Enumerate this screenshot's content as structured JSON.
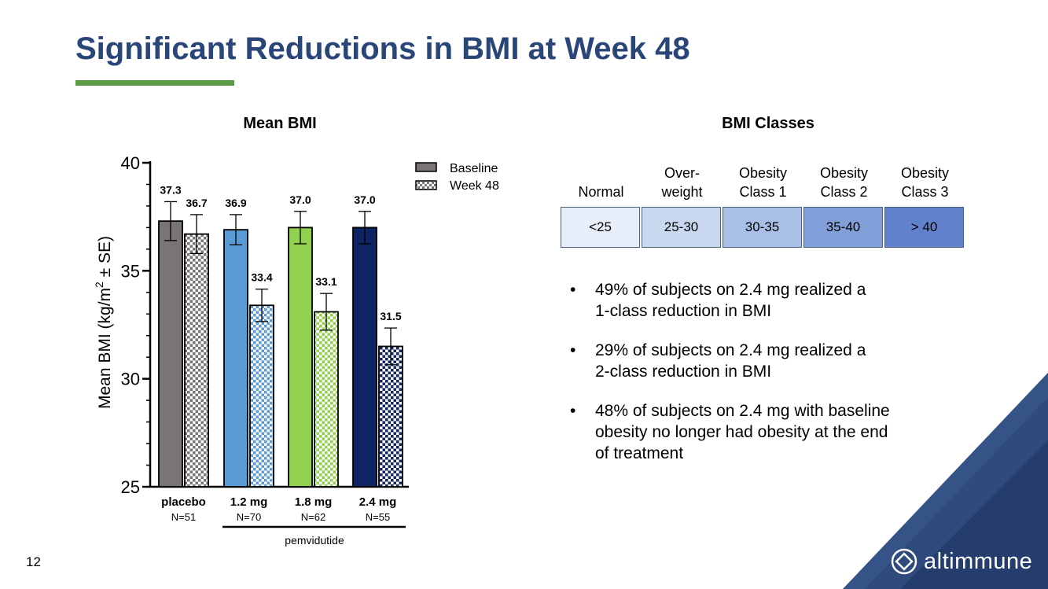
{
  "slide": {
    "title": "Significant Reductions in BMI at Week 48",
    "page_number": "12",
    "logo_text": "altimmune"
  },
  "colors": {
    "title": "#2a4679",
    "accent_green": "#5b9b45",
    "placebo": "#7a7574",
    "dose_1_2": "#5b9bd5",
    "dose_1_8": "#92d050",
    "dose_2_4": "#0f2563"
  },
  "chart_data": {
    "type": "bar",
    "title": "Mean BMI",
    "ylabel": "Mean BMI (kg/m² ± SE)",
    "ylabel_main": "Mean BMI (kg/m",
    "ylabel_sup": "2",
    "ylabel_tail": " ± SE)",
    "ylim": [
      25,
      40
    ],
    "yticks": [
      25,
      30,
      35,
      40
    ],
    "categories": [
      "placebo",
      "1.2 mg",
      "1.8 mg",
      "2.4 mg"
    ],
    "category_n": [
      "N=51",
      "N=70",
      "N=62",
      "N=55"
    ],
    "group_label": "pemvidutide",
    "legend_position": "top-right",
    "series": [
      {
        "name": "Baseline",
        "pattern": "solid",
        "values": [
          37.3,
          36.9,
          37.0,
          37.0
        ],
        "se": [
          0.9,
          0.7,
          0.75,
          0.75
        ],
        "labels": [
          "37.3",
          "36.9",
          "37.0",
          "37.0"
        ]
      },
      {
        "name": "Week 48",
        "pattern": "checkered",
        "values": [
          36.7,
          33.4,
          33.1,
          31.5
        ],
        "se": [
          0.9,
          0.75,
          0.85,
          0.85
        ],
        "labels": [
          "36.7",
          "33.4",
          "33.1",
          "31.5"
        ]
      }
    ]
  },
  "bmi_classes": {
    "title": "BMI Classes",
    "classes": [
      {
        "line1": "",
        "line2": "Normal",
        "range": "<25",
        "color": "#e8eef9"
      },
      {
        "line1": "Over-",
        "line2": "weight",
        "range": "25-30",
        "color": "#c9d7ef"
      },
      {
        "line1": "Obesity",
        "line2": "Class 1",
        "range": "30-35",
        "color": "#a9bfe5"
      },
      {
        "line1": "Obesity",
        "line2": "Class 2",
        "range": "35-40",
        "color": "#839fd9"
      },
      {
        "line1": "Obesity",
        "line2": "Class 3",
        "range": "> 40",
        "color": "#6181cc"
      }
    ]
  },
  "bullets": [
    {
      "line1": "49% of subjects on 2.4 mg realized a",
      "line2": "1-class reduction in BMI"
    },
    {
      "line1": "29% of subjects on 2.4 mg realized a",
      "line2": "2-class reduction in BMI"
    },
    {
      "line1": "48% of subjects on 2.4 mg with baseline",
      "line2": "obesity no longer had obesity at the end",
      "line3": "of treatment"
    }
  ]
}
